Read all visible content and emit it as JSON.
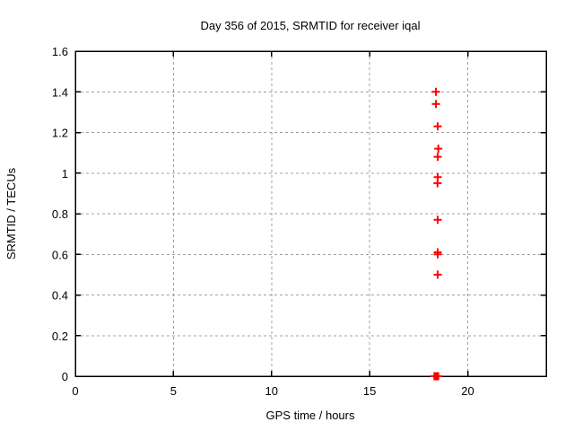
{
  "chart_data": {
    "type": "scatter",
    "title": "Day 356 of 2015, SRMTID for receiver iqal",
    "xlabel": "GPS time / hours",
    "ylabel": "SRMTID / TECUs",
    "xlim": [
      0,
      24
    ],
    "ylim": [
      0,
      1.6
    ],
    "xticks": [
      0,
      5,
      10,
      15,
      20
    ],
    "yticks": [
      0,
      0.2,
      0.4,
      0.6,
      0.8,
      1,
      1.2,
      1.4,
      1.6
    ],
    "grid": true,
    "legend": "none",
    "marker": "plus",
    "series": [
      {
        "name": "SRMTID",
        "color": "#ff0000",
        "points": [
          [
            18.38,
            1.4
          ],
          [
            18.38,
            1.34
          ],
          [
            18.47,
            1.23
          ],
          [
            18.5,
            1.12
          ],
          [
            18.47,
            1.08
          ],
          [
            18.47,
            0.98
          ],
          [
            18.46,
            0.95
          ],
          [
            18.47,
            0.77
          ],
          [
            18.47,
            0.61
          ],
          [
            18.47,
            0.6
          ],
          [
            18.47,
            0.5
          ],
          [
            18.3,
            0.0
          ],
          [
            18.35,
            0.0
          ],
          [
            18.4,
            0.0
          ],
          [
            18.45,
            0.0
          ],
          [
            18.5,
            0.0
          ]
        ]
      }
    ]
  },
  "colors": {
    "background": "#ffffff",
    "frame": "#000000",
    "grid": "#a0a0a0",
    "text": "#000000",
    "marker": "#ff0000"
  }
}
